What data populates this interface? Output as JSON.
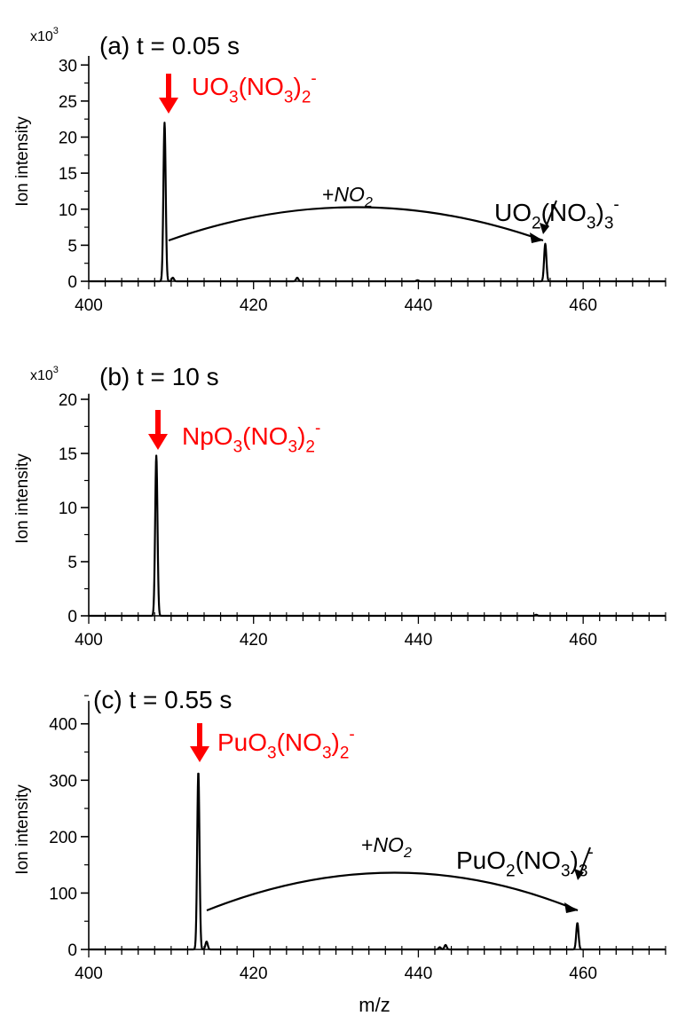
{
  "colors": {
    "axis": "#000000",
    "trace": "#000000",
    "highlight": "#ff0000",
    "background": "#ffffff"
  },
  "xlabel": "m/z",
  "chart_data": [
    {
      "type": "line",
      "panel_label": "(a) t = 0.05 s",
      "ylabel": "Ion intensity",
      "y_multiplier": "x10",
      "y_multiplier_exp": "3",
      "xlim": [
        400,
        470
      ],
      "ylim": [
        0,
        32
      ],
      "x_ticks": [
        400,
        420,
        440,
        460
      ],
      "y_ticks": [
        0,
        5,
        10,
        15,
        20,
        25,
        30
      ],
      "peaks": [
        {
          "x": 409.2,
          "y": 22.0
        },
        {
          "x": 410.2,
          "y": 0.5
        },
        {
          "x": 425.3,
          "y": 0.5
        },
        {
          "x": 439.9,
          "y": 0.15
        },
        {
          "x": 455.4,
          "y": 5.2
        }
      ],
      "highlight_label": {
        "base": "UO",
        "s1": "3",
        "mid": "(NO",
        "s2": "3",
        "close": ")",
        "s3": "2",
        "sup": "-"
      },
      "product_label": {
        "base": "UO",
        "s1": "2",
        "mid": "(NO",
        "s2": "3",
        "close": ")",
        "s3": "3",
        "sup": "-"
      },
      "reaction_label": {
        "prefix": "+",
        "species": "NO",
        "sub": "2"
      }
    },
    {
      "type": "line",
      "panel_label": "(b) t = 10 s",
      "ylabel": "Ion intensity",
      "y_multiplier": "x10",
      "y_multiplier_exp": "3",
      "xlim": [
        400,
        470
      ],
      "ylim": [
        0,
        21
      ],
      "x_ticks": [
        400,
        420,
        440,
        460
      ],
      "y_ticks": [
        0,
        5,
        10,
        15,
        20
      ],
      "peaks": [
        {
          "x": 408.2,
          "y": 14.8
        },
        {
          "x": 454.3,
          "y": 0.1
        }
      ],
      "highlight_label": {
        "base": "NpO",
        "s1": "3",
        "mid": "(NO",
        "s2": "3",
        "close": ")",
        "s3": "2",
        "sup": "-"
      }
    },
    {
      "type": "line",
      "panel_label": "(c) t = 0.55 s",
      "ylabel": "Ion intensity",
      "xlim": [
        400,
        470
      ],
      "ylim": [
        0,
        450
      ],
      "x_ticks": [
        400,
        420,
        440,
        460
      ],
      "y_ticks": [
        0,
        100,
        200,
        300,
        400
      ],
      "peaks": [
        {
          "x": 413.3,
          "y": 315
        },
        {
          "x": 414.3,
          "y": 14
        },
        {
          "x": 442.6,
          "y": 4
        },
        {
          "x": 443.3,
          "y": 8
        },
        {
          "x": 459.3,
          "y": 47
        }
      ],
      "highlight_label": {
        "base": "PuO",
        "s1": "3",
        "mid": "(NO",
        "s2": "3",
        "close": ")",
        "s3": "2",
        "sup": "-"
      },
      "product_label": {
        "base": "PuO",
        "s1": "2",
        "mid": "(NO",
        "s2": "3",
        "close": ")",
        "s3": "3",
        "sup": "-"
      },
      "reaction_label": {
        "prefix": "+",
        "species": "NO",
        "sub": "2"
      }
    }
  ]
}
